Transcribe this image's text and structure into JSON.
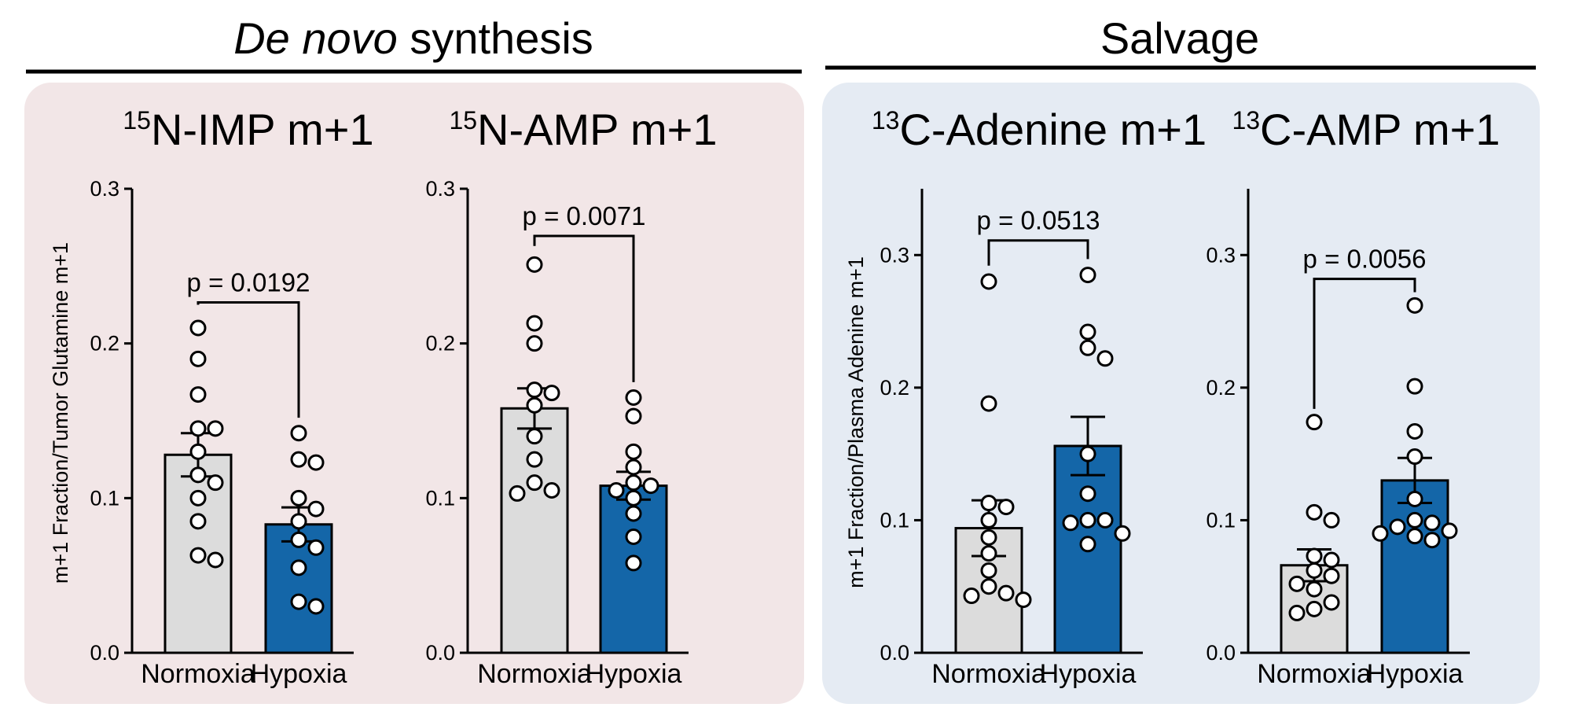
{
  "sections": [
    {
      "title_italic": "De novo",
      "title_rest": " synthesis",
      "bg": "#f2e6e7"
    },
    {
      "title_italic": "",
      "title_rest": "Salvage",
      "bg": "#e5ebf3"
    }
  ],
  "ylabels": [
    "m+1 Fraction/Tumor Glutamine m+1",
    "m+1 Fraction/Plasma Adenine m+1"
  ],
  "colors": {
    "normoxia": "#dcdcdc",
    "hypoxia": "#1466a8"
  },
  "chart_data": [
    {
      "type": "bar",
      "title_sup": "15",
      "title": "N-IMP m+1",
      "categories": [
        "Normoxia",
        "Hypoxia"
      ],
      "ylim": [
        0,
        0.3
      ],
      "yticks": [
        "0.0",
        "0.1",
        "0.2",
        "0.3"
      ],
      "values": [
        0.128,
        0.083
      ],
      "sem": [
        0.014,
        0.011
      ],
      "points": [
        [
          0.21,
          0.19,
          0.167,
          0.145,
          0.145,
          0.13,
          0.115,
          0.11,
          0.1,
          0.085,
          0.063,
          0.06
        ],
        [
          0.142,
          0.125,
          0.123,
          0.1,
          0.093,
          0.085,
          0.073,
          0.068,
          0.055,
          0.033,
          0.03
        ]
      ],
      "pvalue": "p = 0.0192"
    },
    {
      "type": "bar",
      "title_sup": "15",
      "title": "N-AMP m+1",
      "categories": [
        "Normoxia",
        "Hypoxia"
      ],
      "ylim": [
        0,
        0.3
      ],
      "yticks": [
        "0.0",
        "0.1",
        "0.2",
        "0.3"
      ],
      "values": [
        0.158,
        0.108
      ],
      "sem": [
        0.013,
        0.009
      ],
      "points": [
        [
          0.251,
          0.213,
          0.2,
          0.17,
          0.168,
          0.16,
          0.14,
          0.125,
          0.11,
          0.105,
          0.103
        ],
        [
          0.165,
          0.153,
          0.13,
          0.12,
          0.11,
          0.108,
          0.105,
          0.1,
          0.09,
          0.075,
          0.058
        ]
      ],
      "pvalue": "p = 0.0071"
    },
    {
      "type": "bar",
      "title_sup": "13",
      "title": "C-Adenine m+1",
      "categories": [
        "Normoxia",
        "Hypoxia"
      ],
      "ylim": [
        0,
        0.35
      ],
      "yticks": [
        "0.0",
        "0.1",
        "0.2",
        "0.3"
      ],
      "values": [
        0.094,
        0.156
      ],
      "sem": [
        0.021,
        0.022
      ],
      "points": [
        [
          0.28,
          0.188,
          0.113,
          0.11,
          0.1,
          0.087,
          0.075,
          0.062,
          0.05,
          0.045,
          0.043,
          0.04
        ],
        [
          0.285,
          0.242,
          0.23,
          0.222,
          0.15,
          0.12,
          0.1,
          0.1,
          0.098,
          0.09,
          0.082
        ]
      ],
      "pvalue": "p = 0.0513"
    },
    {
      "type": "bar",
      "title_sup": "13",
      "title": "C-AMP m+1",
      "categories": [
        "Normoxia",
        "Hypoxia"
      ],
      "ylim": [
        0,
        0.35
      ],
      "yticks": [
        "0.0",
        "0.1",
        "0.2",
        "0.3"
      ],
      "values": [
        0.066,
        0.13
      ],
      "sem": [
        0.012,
        0.017
      ],
      "points": [
        [
          0.174,
          0.106,
          0.1,
          0.073,
          0.07,
          0.062,
          0.058,
          0.052,
          0.048,
          0.038,
          0.033,
          0.03
        ],
        [
          0.262,
          0.201,
          0.167,
          0.148,
          0.116,
          0.1,
          0.098,
          0.095,
          0.092,
          0.09,
          0.088,
          0.085
        ]
      ],
      "pvalue": "p = 0.0056"
    }
  ]
}
